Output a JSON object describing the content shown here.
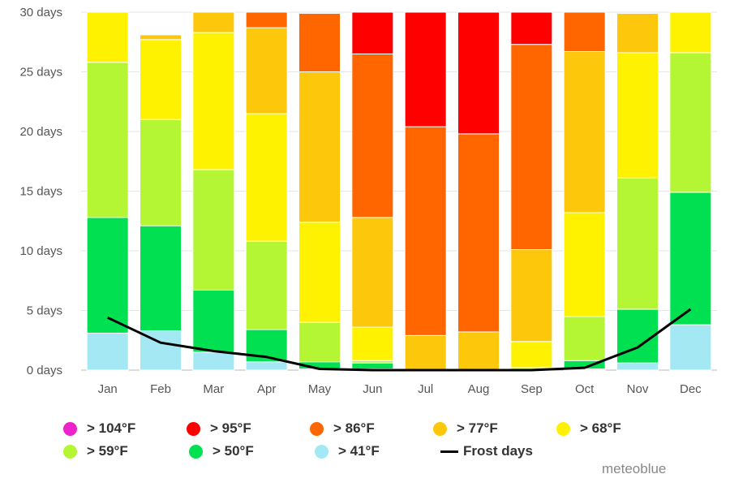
{
  "chart_data": {
    "type": "bar",
    "stacked": true,
    "categories": [
      "Jan",
      "Feb",
      "Mar",
      "Apr",
      "May",
      "Jun",
      "Jul",
      "Aug",
      "Sep",
      "Oct",
      "Nov",
      "Dec"
    ],
    "y_tick_labels": [
      "0 days",
      "5 days",
      "10 days",
      "15 days",
      "20 days",
      "25 days",
      "30 days"
    ],
    "ylim": [
      0,
      30
    ],
    "grid": true,
    "legend_position": "bottom",
    "series": [
      {
        "name": "> 41°F",
        "color": "#a3e8f3",
        "values": [
          3.1,
          3.3,
          1.5,
          0.7,
          0.1,
          0.1,
          0,
          0,
          0,
          0.1,
          0.6,
          3.8
        ]
      },
      {
        "name": "> 50°F",
        "color": "#00e050",
        "values": [
          9.7,
          8.8,
          5.2,
          2.7,
          0.6,
          0.5,
          0,
          0,
          0,
          0.7,
          4.5,
          11.1
        ]
      },
      {
        "name": "> 59°F",
        "color": "#b4f534",
        "values": [
          13.0,
          8.9,
          10.1,
          7.4,
          3.3,
          0.2,
          0,
          0,
          0.2,
          3.7,
          11.0,
          11.7
        ]
      },
      {
        "name": "> 68°F",
        "color": "#fff200",
        "values": [
          4.2,
          6.7,
          11.5,
          10.7,
          8.4,
          2.8,
          0,
          0,
          2.2,
          8.7,
          10.5,
          3.4
        ]
      },
      {
        "name": "> 77°F",
        "color": "#fdc70c",
        "values": [
          0,
          0.4,
          1.7,
          7.2,
          12.6,
          9.2,
          2.9,
          3.2,
          7.7,
          13.5,
          3.3,
          0
        ]
      },
      {
        "name": "> 86°F",
        "color": "#ff6600",
        "values": [
          0,
          0,
          0,
          1.3,
          4.9,
          13.7,
          17.5,
          16.6,
          17.2,
          3.3,
          0,
          0
        ]
      },
      {
        "name": "> 95°F",
        "color": "#ff0000",
        "values": [
          0,
          0,
          0,
          0,
          0,
          3.5,
          9.6,
          10.2,
          2.8,
          0,
          0,
          0
        ]
      },
      {
        "name": "> 104°F",
        "color": "#ee22cc",
        "values": [
          0,
          0,
          0,
          0,
          0,
          0,
          0,
          0,
          0,
          0,
          0,
          0
        ]
      }
    ],
    "line_series": {
      "name": "Frost days",
      "color": "#000000",
      "values": [
        4.4,
        2.3,
        1.6,
        1.1,
        0.1,
        0,
        0,
        0,
        0,
        0.2,
        1.9,
        5.1
      ]
    }
  },
  "legend": {
    "items": [
      {
        "label": "> 104°F",
        "color": "#ee22cc",
        "kind": "dot"
      },
      {
        "label": "> 95°F",
        "color": "#ff0000",
        "kind": "dot"
      },
      {
        "label": "> 86°F",
        "color": "#ff6600",
        "kind": "dot"
      },
      {
        "label": "> 77°F",
        "color": "#fdc70c",
        "kind": "dot"
      },
      {
        "label": "> 68°F",
        "color": "#fff200",
        "kind": "dot"
      },
      {
        "label": "> 59°F",
        "color": "#b4f534",
        "kind": "dot"
      },
      {
        "label": "> 50°F",
        "color": "#00e050",
        "kind": "dot"
      },
      {
        "label": "> 41°F",
        "color": "#a3e8f3",
        "kind": "dot"
      },
      {
        "label": "Frost days",
        "color": "#000000",
        "kind": "line"
      }
    ]
  },
  "credit": "meteoblue"
}
